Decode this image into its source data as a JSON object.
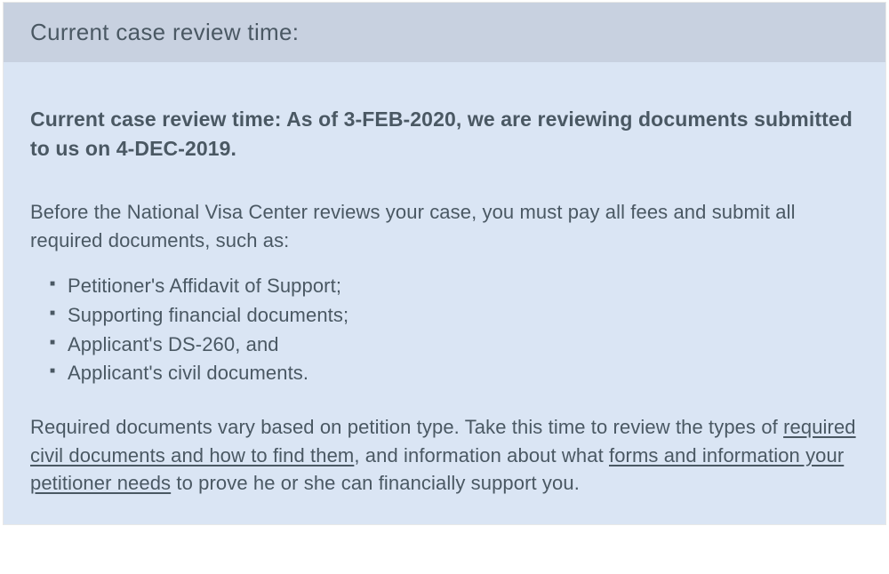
{
  "header": {
    "title": "Current case review time:"
  },
  "content": {
    "bold_statement": "Current case review time: As of 3-FEB-2020, we are reviewing documents submitted to us on 4-DEC-2019.",
    "intro_paragraph": "Before the National Visa Center reviews your case, you must pay all fees and submit all required documents, such as:",
    "bullets": [
      "Petitioner's Affidavit of Support;",
      "Supporting financial documents;",
      "Applicant's DS-260, and",
      "Applicant's civil documents."
    ],
    "final_text_1": "Required documents vary based on petition type. Take this time to review the types of ",
    "link_1": "required civil documents and how to find them",
    "final_text_2": ", and information about what ",
    "link_2": "forms and information your petitioner needs",
    "final_text_3": " to prove he or she can financially support you."
  },
  "colors": {
    "header_bg": "#c8d1e0",
    "content_bg": "#dae5f4",
    "text": "#4a5863"
  }
}
